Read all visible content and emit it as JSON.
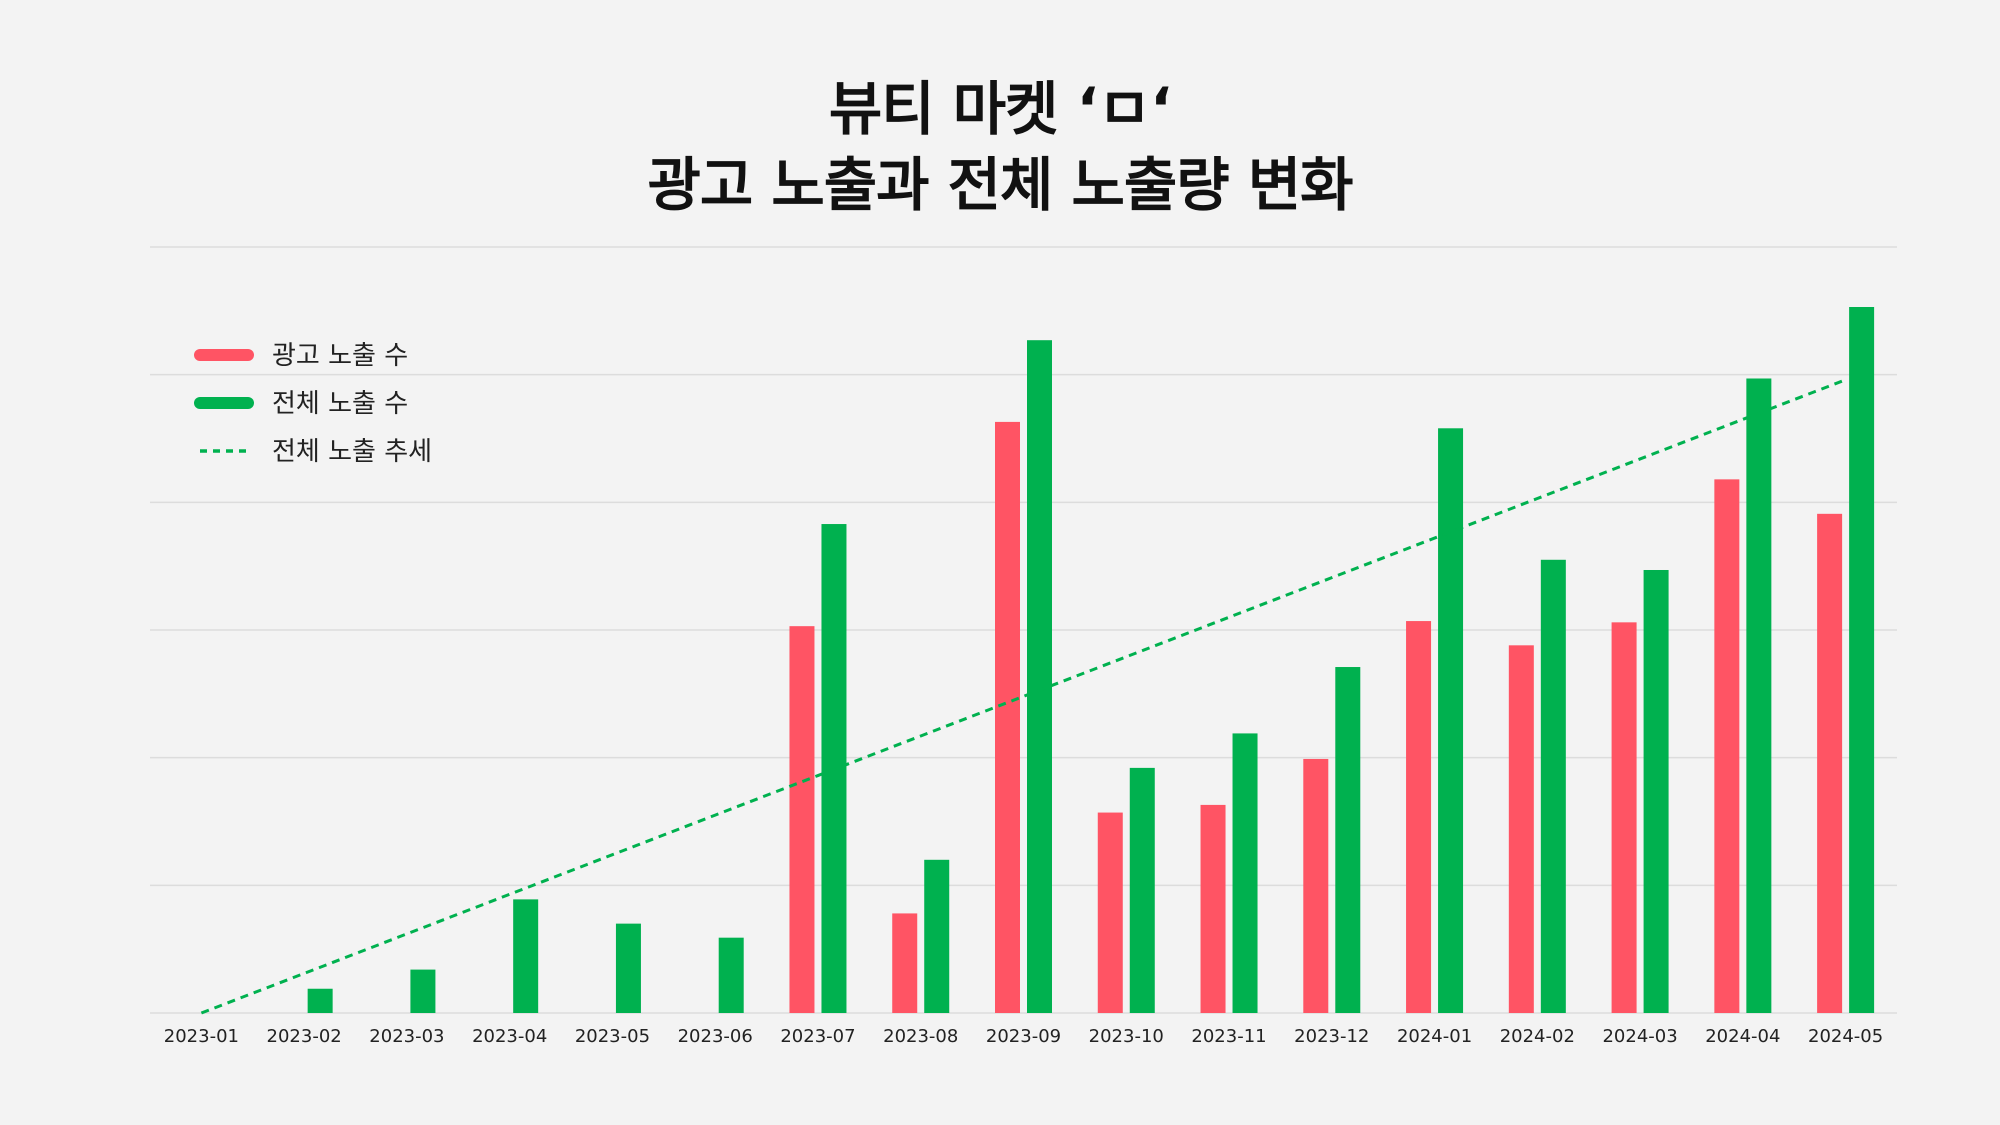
{
  "title_lines": [
    "뷰티 마켓 ‘ㅁ‘",
    "광고 노출과 전체 노출량 변화"
  ],
  "colors": {
    "ad": "#ff5464",
    "total": "#00b14f",
    "trend": "#00b14f",
    "grid": "#dcdcdc"
  },
  "legend": [
    {
      "label": "광고 노출 수",
      "kind": "bar",
      "color": "#ff5464"
    },
    {
      "label": "전체 노출 수",
      "kind": "bar",
      "color": "#00b14f"
    },
    {
      "label": "전체 노출 추세",
      "kind": "dashed-line",
      "color": "#00b14f"
    }
  ],
  "chart_data": {
    "type": "bar",
    "title": "뷰티 마켓 ‘ㅁ‘ 광고 노출과 전체 노출량 변화",
    "xlabel": "",
    "ylabel": "",
    "ylim": [
      0,
      600
    ],
    "grid": true,
    "legend_position": "top-left",
    "categories": [
      "2023-01",
      "2023-02",
      "2023-03",
      "2023-04",
      "2023-05",
      "2023-06",
      "2023-07",
      "2023-08",
      "2023-09",
      "2023-10",
      "2023-11",
      "2023-12",
      "2024-01",
      "2024-02",
      "2024-03",
      "2024-04",
      "2024-05"
    ],
    "series": [
      {
        "name": "광고 노출 수",
        "type": "bar",
        "color": "#ff5464",
        "values": [
          0,
          0,
          0,
          0,
          0,
          0,
          303,
          78,
          463,
          157,
          163,
          199,
          307,
          288,
          306,
          418,
          391
        ]
      },
      {
        "name": "전체 노출 수",
        "type": "bar",
        "color": "#00b14f",
        "values": [
          0,
          19,
          34,
          89,
          70,
          59,
          383,
          120,
          527,
          192,
          219,
          271,
          458,
          355,
          347,
          497,
          553
        ]
      },
      {
        "name": "전체 노출 추세",
        "type": "line",
        "style": "dashed",
        "color": "#00b14f",
        "values": [
          0,
          31,
          62,
          93,
          124,
          155,
          186,
          217,
          248,
          279,
          310,
          341,
          372,
          403,
          434,
          465,
          496
        ]
      }
    ]
  }
}
